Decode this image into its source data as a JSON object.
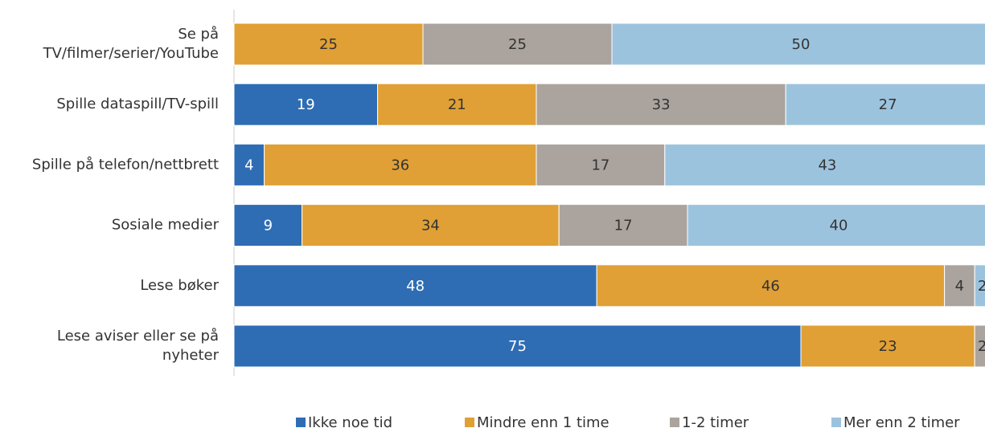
{
  "chart_data": {
    "type": "stacked-barh",
    "categories": [
      "Se på\nTV/filmer/serier/YouTube",
      "Spille dataspill/TV-spill",
      "Spille på telefon/nettbrett",
      "Sosiale medier",
      "Lese bøker",
      "Lese aviser eller se på\nnyheter"
    ],
    "series": [
      {
        "name": "Ikke noe tid",
        "color": "#2e6db4",
        "values": [
          0,
          19,
          4,
          9,
          48,
          75
        ]
      },
      {
        "name": "Mindre enn 1 time",
        "color": "#e0a035",
        "values": [
          25,
          21,
          36,
          34,
          46,
          23
        ]
      },
      {
        "name": "1-2 timer",
        "color": "#aba49e",
        "values": [
          25,
          33,
          17,
          17,
          4,
          2
        ]
      },
      {
        "name": "Mer enn 2 timer",
        "color": "#9cc3de",
        "values": [
          50,
          27,
          43,
          40,
          2,
          0
        ]
      }
    ],
    "xlim": [
      0,
      100
    ],
    "legend": "bottom"
  }
}
